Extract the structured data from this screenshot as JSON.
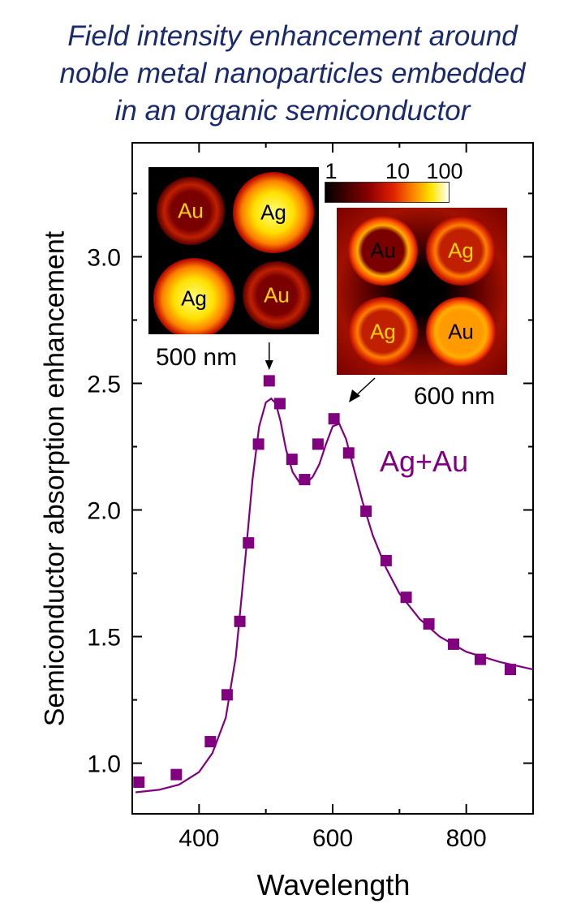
{
  "title": {
    "line1": "Field intensity enhancement around",
    "line2": "noble metal nanoparticles embedded",
    "line3": "in an organic semiconductor"
  },
  "colors": {
    "title": "#1a2a6c",
    "series": "#800080",
    "ag_label": "#000000",
    "au_label": "#ffd400"
  },
  "chart_data": {
    "type": "scatter",
    "xlabel": "Wavelength",
    "ylabel": "Semiconductor absorption enhancement",
    "xlim": [
      300,
      900
    ],
    "ylim": [
      0.8,
      3.45
    ],
    "xticks": [
      400,
      600,
      800
    ],
    "xtick_labels": [
      "400",
      "600",
      "800"
    ],
    "xminor": [
      300,
      500,
      700,
      900
    ],
    "yticks": [
      1.0,
      1.5,
      2.0,
      2.5,
      3.0
    ],
    "ytick_labels": [
      "1.0",
      "1.5",
      "2.0",
      "2.5",
      "3.0"
    ],
    "series": [
      {
        "name": "Ag+Au",
        "marker": "square",
        "x": [
          310,
          366,
          417,
          442,
          461,
          474,
          489,
          505,
          521,
          539,
          558,
          578,
          602,
          624,
          650,
          680,
          710,
          744,
          781,
          821,
          866
        ],
        "y": [
          0.925,
          0.955,
          1.085,
          1.27,
          1.56,
          1.87,
          2.26,
          2.51,
          2.42,
          2.2,
          2.12,
          2.26,
          2.36,
          2.225,
          1.995,
          1.8,
          1.655,
          1.55,
          1.47,
          1.41,
          1.37
        ]
      },
      {
        "name": "",
        "type": "line",
        "x": [
          305,
          340,
          370,
          400,
          420,
          440,
          455,
          470,
          480,
          490,
          500,
          508,
          515,
          522,
          530,
          540,
          550,
          560,
          570,
          580,
          590,
          600,
          610,
          620,
          630,
          645,
          660,
          680,
          700,
          730,
          760,
          800,
          850,
          900
        ],
        "y": [
          0.885,
          0.895,
          0.915,
          0.965,
          1.04,
          1.18,
          1.42,
          1.83,
          2.12,
          2.33,
          2.425,
          2.44,
          2.42,
          2.35,
          2.24,
          2.15,
          2.11,
          2.105,
          2.13,
          2.18,
          2.26,
          2.33,
          2.34,
          2.28,
          2.18,
          2.03,
          1.9,
          1.77,
          1.67,
          1.57,
          1.5,
          1.44,
          1.4,
          1.37
        ]
      }
    ],
    "series_label": "Ag+Au",
    "annotations": [
      {
        "text": "500 nm",
        "x": 505
      },
      {
        "text": "600 nm",
        "x": 602
      }
    ],
    "colorbar_ticks": [
      "1",
      "10",
      "100"
    ]
  },
  "insets": [
    {
      "name": "500nm-field-map",
      "particles": [
        {
          "label": "Au",
          "glow": "dim"
        },
        {
          "label": "Ag",
          "glow": "bright"
        },
        {
          "label": "Ag",
          "glow": "bright"
        },
        {
          "label": "Au",
          "glow": "dim"
        }
      ]
    },
    {
      "name": "600nm-field-map",
      "particles": [
        {
          "label": "Au",
          "glow": "ring"
        },
        {
          "label": "Ag",
          "glow": "ringdim"
        },
        {
          "label": "Ag",
          "glow": "ringdim"
        },
        {
          "label": "Au",
          "glow": "ring"
        }
      ]
    }
  ]
}
